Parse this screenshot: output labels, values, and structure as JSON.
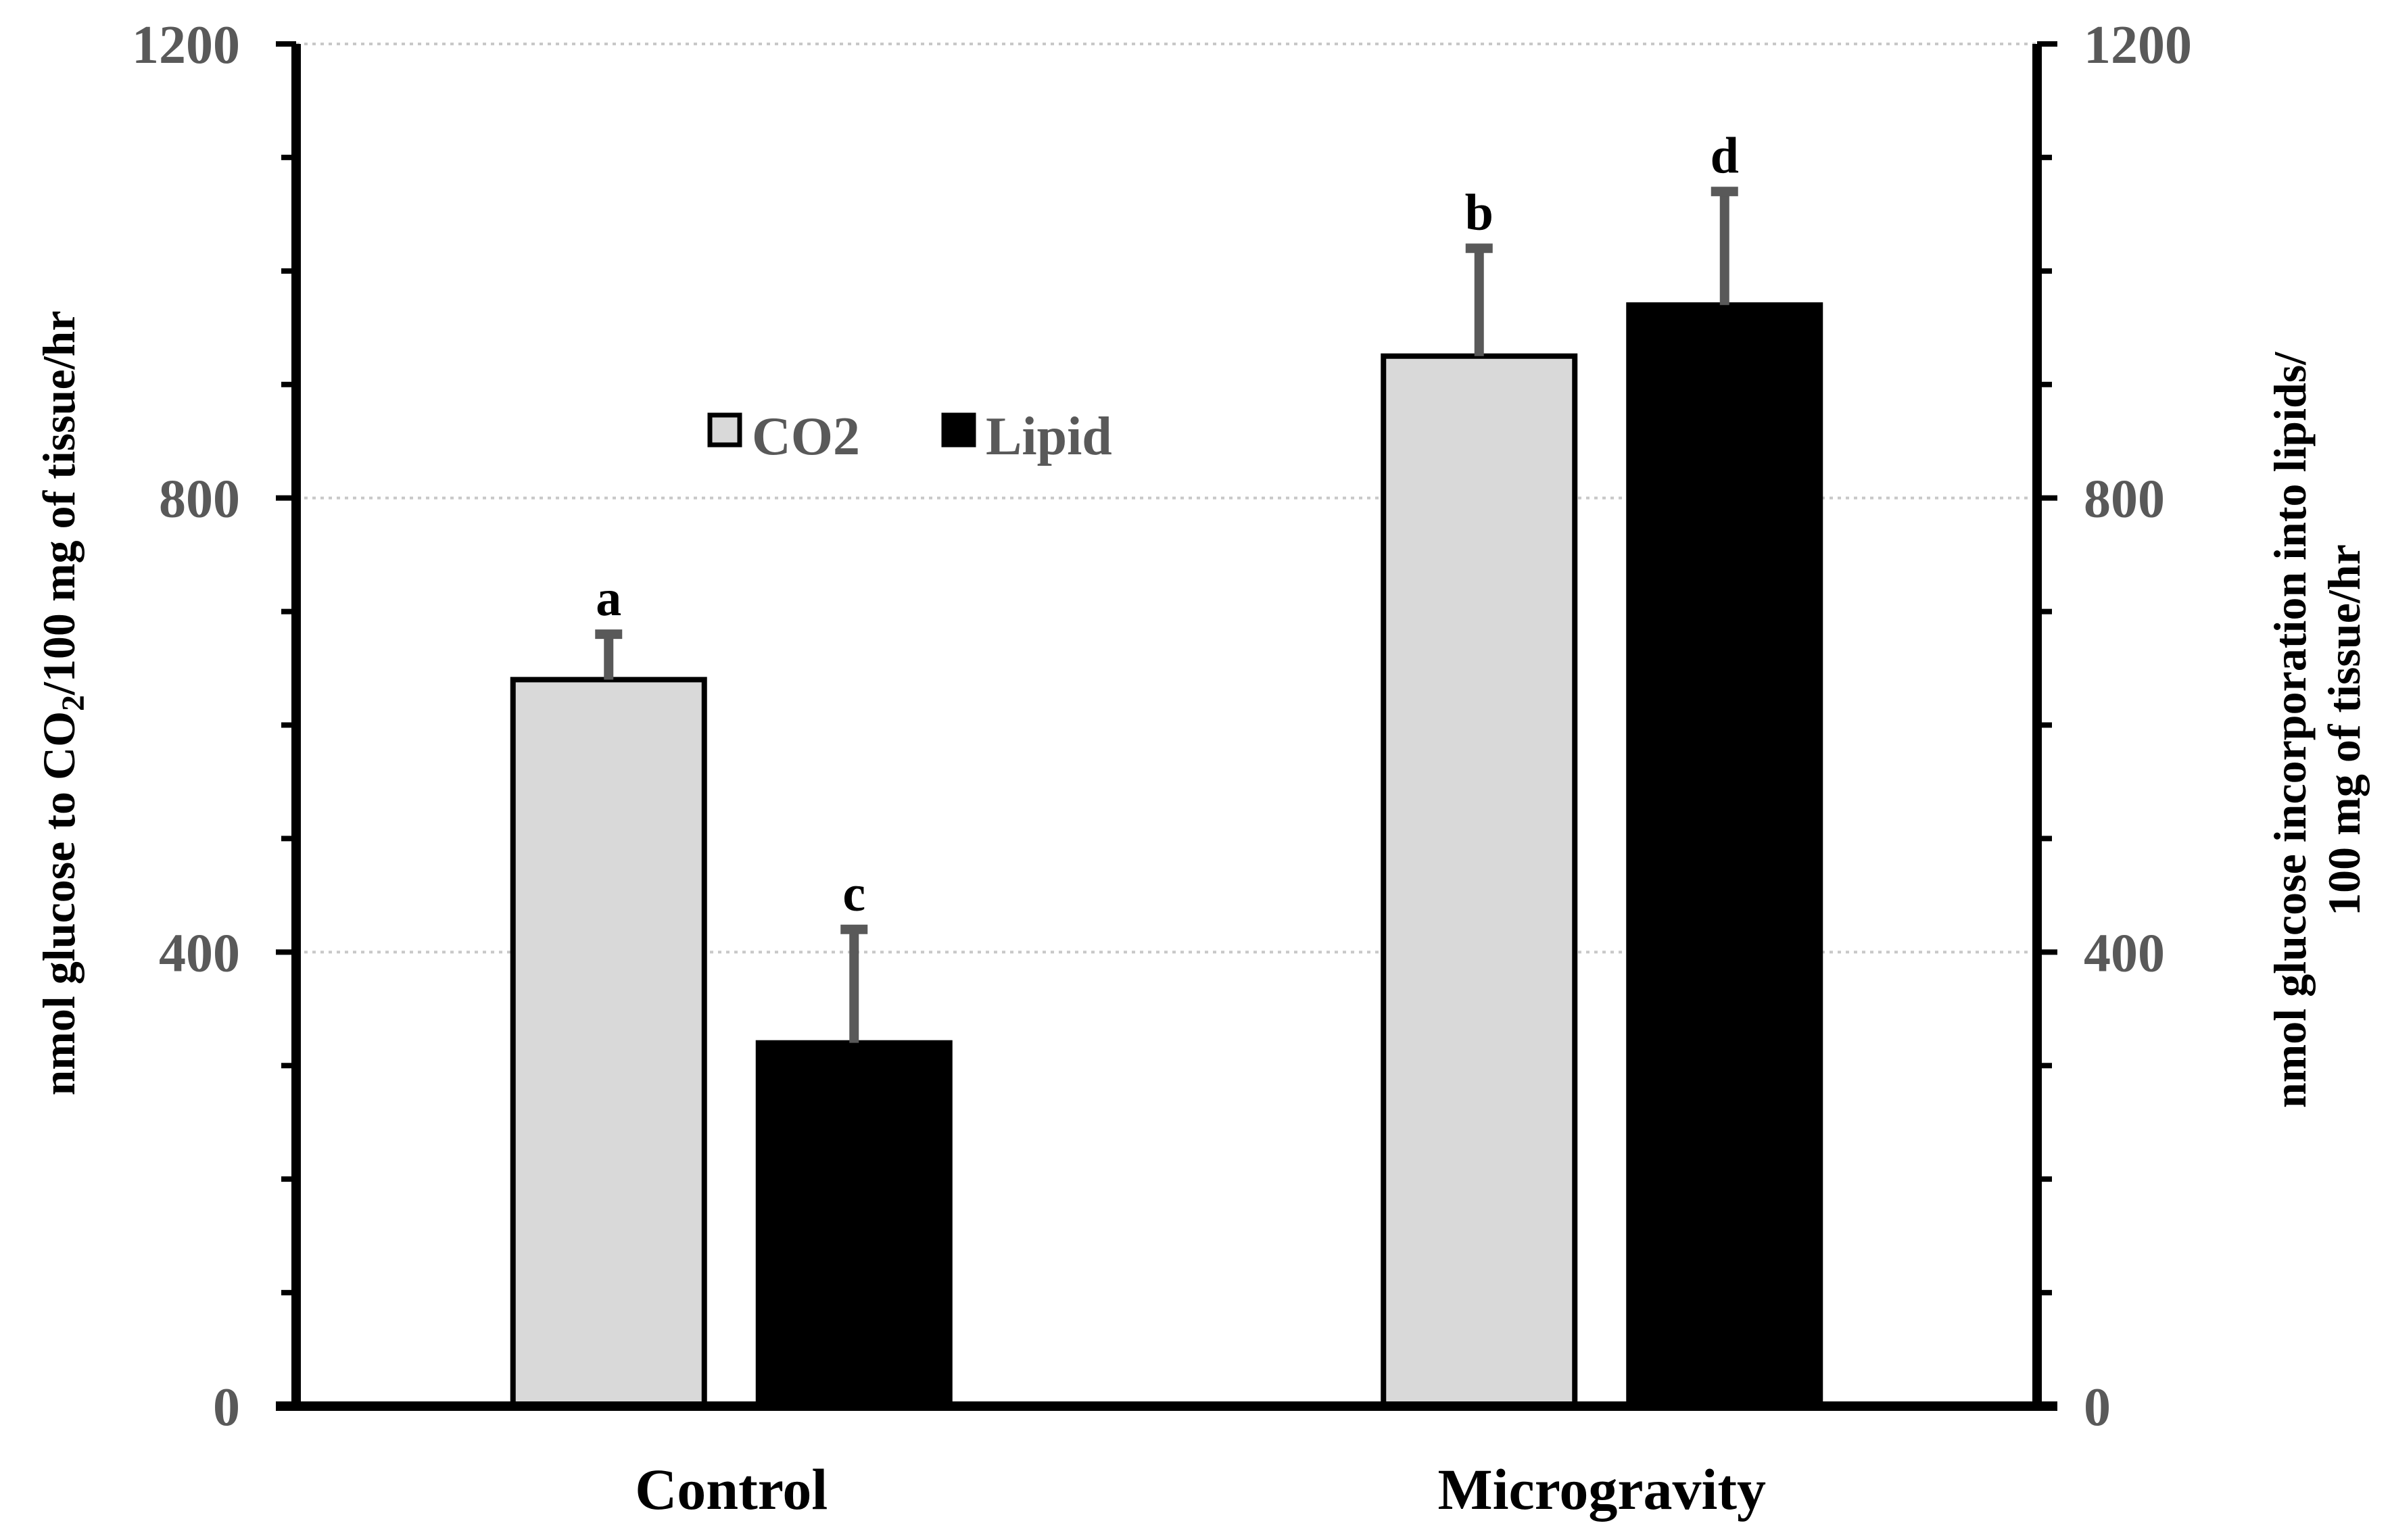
{
  "chart_data": {
    "type": "bar",
    "categories": [
      "Control",
      "Microgravity"
    ],
    "series": [
      {
        "name": "CO2",
        "color": "#d9d9d9",
        "axis": "left",
        "values": [
          640,
          925
        ],
        "errors": [
          40,
          95
        ],
        "sig_labels": [
          "a",
          "b"
        ]
      },
      {
        "name": "Lipid",
        "color": "#000000",
        "axis": "right",
        "values": [
          320,
          970
        ],
        "errors": [
          100,
          100
        ],
        "sig_labels": [
          "c",
          "d"
        ]
      }
    ],
    "ylim": [
      0,
      1200
    ],
    "y_ticks": [
      "0",
      "400",
      "800",
      "1200"
    ],
    "y_tick_values": [
      0,
      400,
      800,
      1200
    ],
    "minor_tick_step": 100,
    "gridlines": true,
    "ylabel_left": {
      "before": "nmol glucose to CO",
      "subscript": "2",
      "after": "/100 mg of tissue/hr"
    },
    "ylabel_right": {
      "line1": "nmol glucose incorporation into lipids/",
      "line2": "100 mg of tissue/hr"
    },
    "legend_position": "upper-left-center",
    "error_bar_color": "#595959",
    "axis_color": "#000000"
  }
}
